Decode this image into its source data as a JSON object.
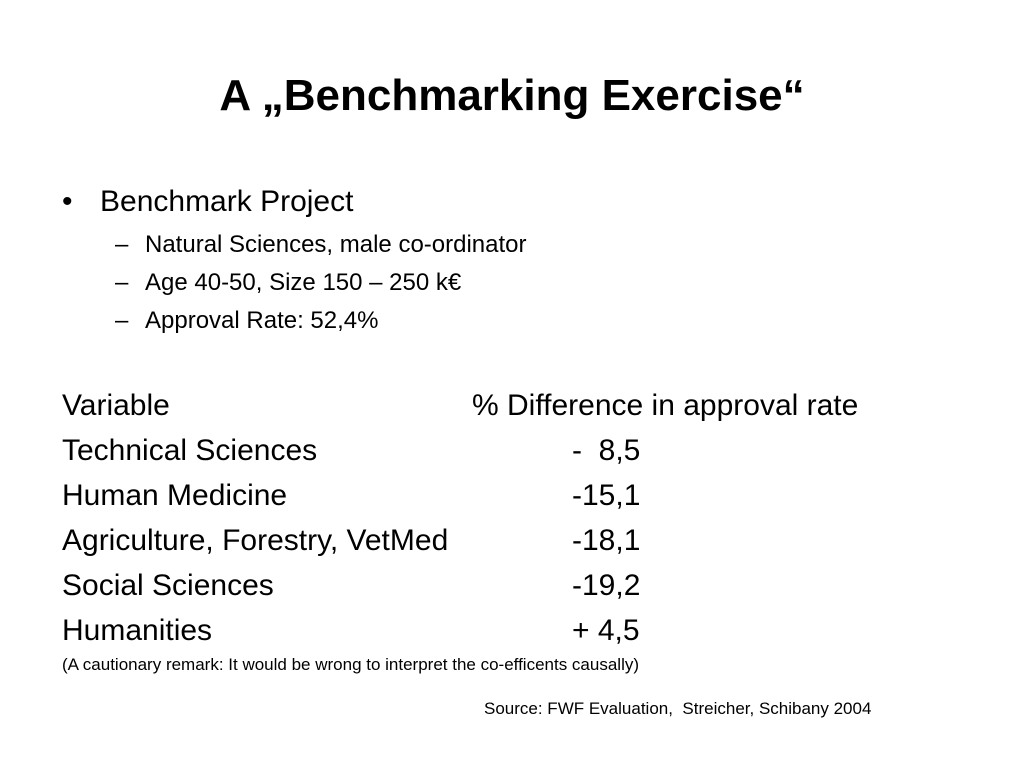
{
  "slide": {
    "title": "A „Benchmarking Exercise“"
  },
  "bullet": {
    "symbol": "•",
    "text": "Benchmark Project",
    "dash": "–",
    "sub_items": [
      "Natural Sciences, male co-ordinator",
      "Age 40-50, Size 150 – 250 k€",
      "Approval Rate: 52,4%"
    ]
  },
  "table": {
    "header": {
      "variable": "Variable",
      "difference": "% Difference in approval rate"
    },
    "rows": [
      {
        "variable": "Technical Sciences",
        "value": "-  8,5"
      },
      {
        "variable": "Human Medicine",
        "value": "-15,1"
      },
      {
        "variable": "Agriculture, Forestry, VetMed",
        "value": "-18,1"
      },
      {
        "variable": "Social Sciences",
        "value": "-19,2"
      },
      {
        "variable": "Humanities",
        "value": "+ 4,5"
      }
    ]
  },
  "remark": "(A cautionary remark: It would be wrong to interpret the co-efficents causally)",
  "source": "Source: FWF Evaluation,  Streicher, Schibany 2004"
}
